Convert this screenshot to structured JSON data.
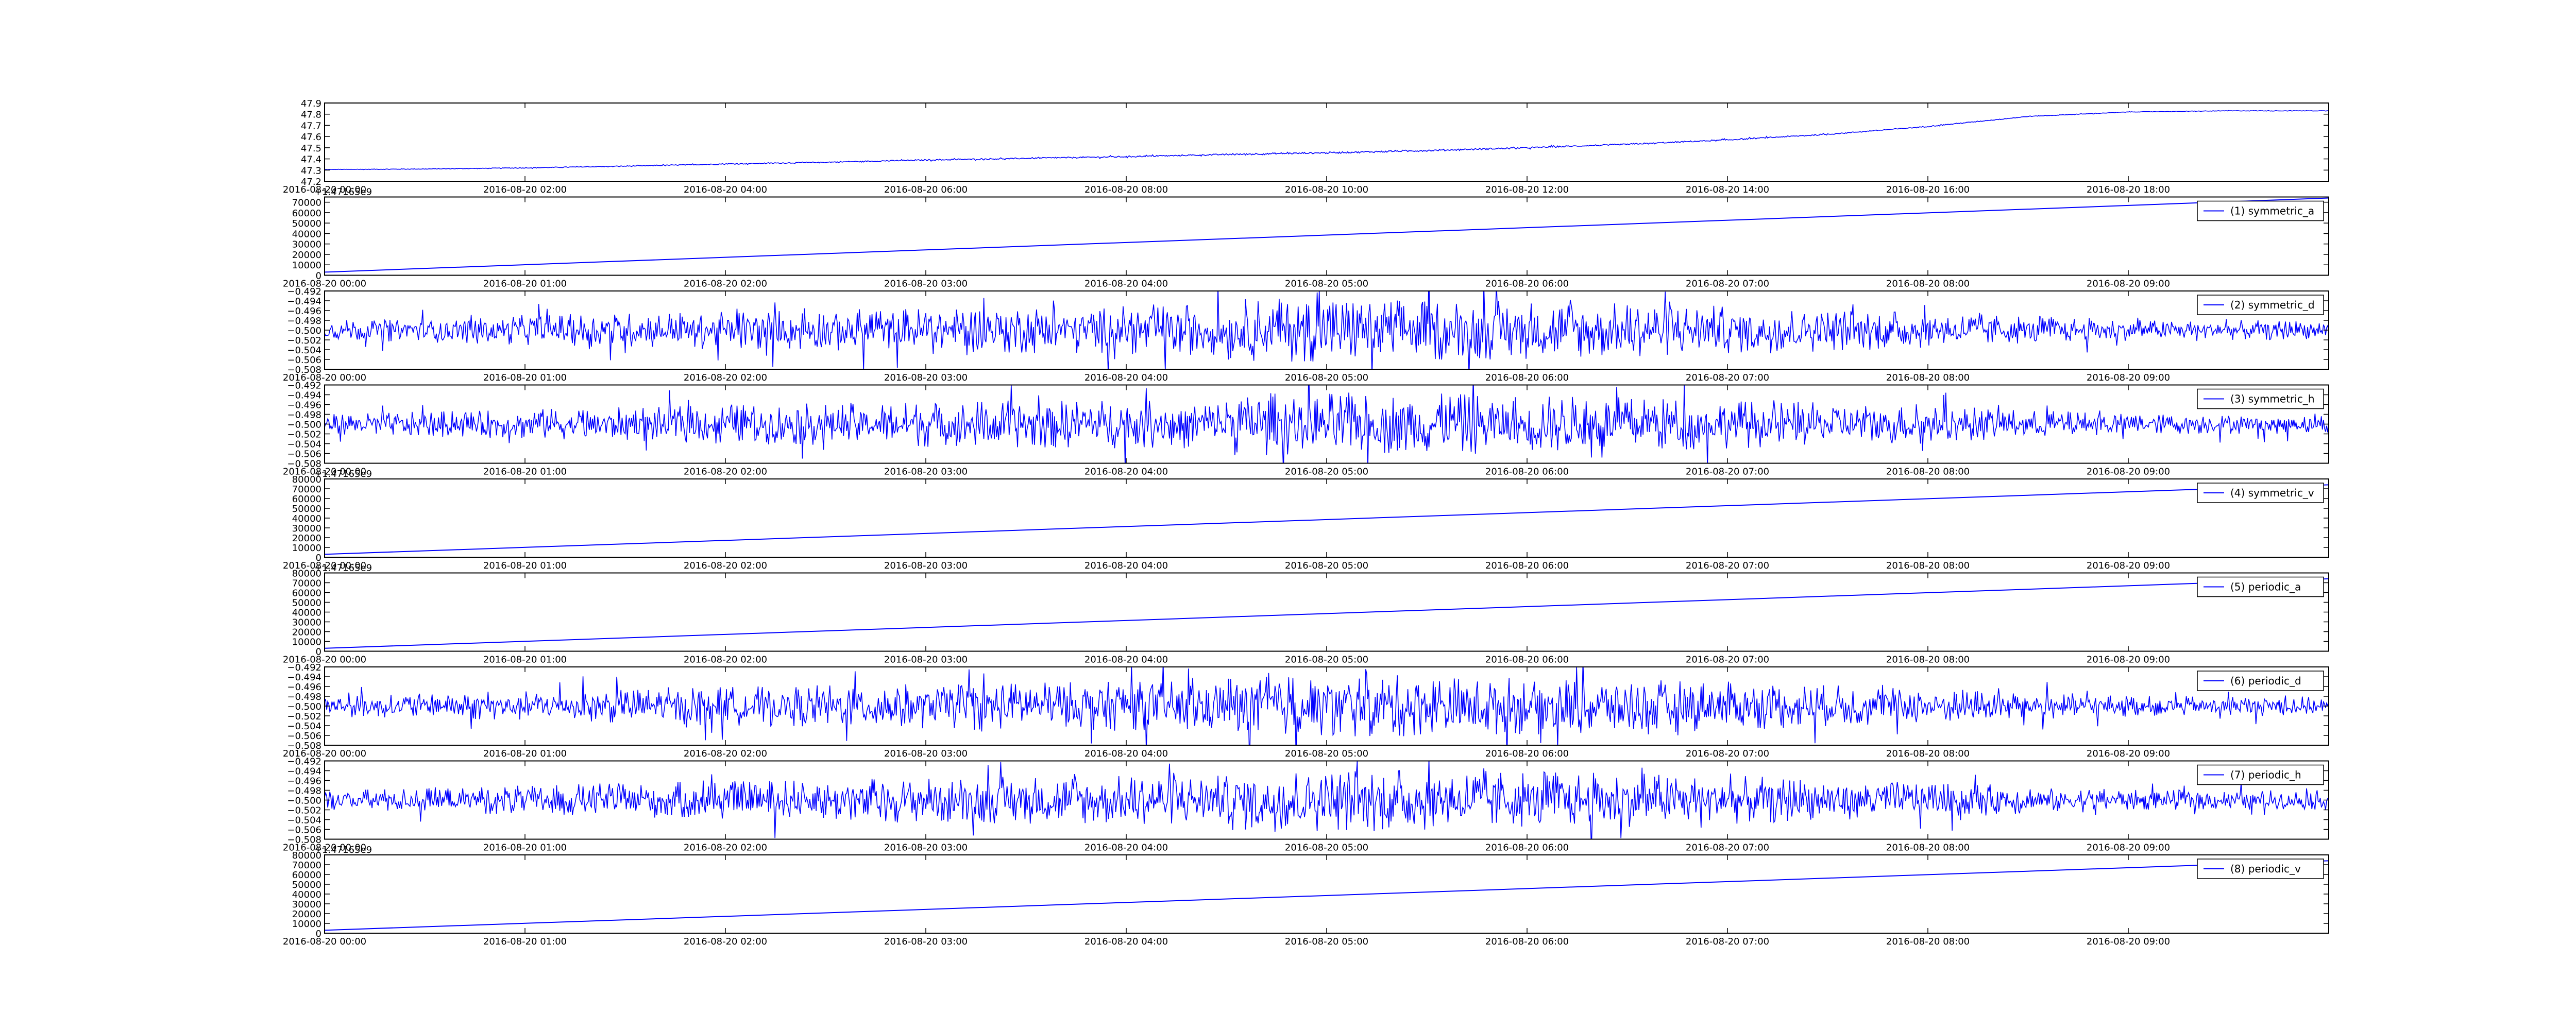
{
  "colors": {
    "line": "#0000ff",
    "axes": "#000000",
    "background": "#ffffff"
  },
  "chart_data": [
    {
      "type": "line",
      "legend": null,
      "offset_label": "",
      "x_ticks": [
        "2016-08-20 00:00",
        "2016-08-20 02:00",
        "2016-08-20 04:00",
        "2016-08-20 06:00",
        "2016-08-20 08:00",
        "2016-08-20 10:00",
        "2016-08-20 12:00",
        "2016-08-20 14:00",
        "2016-08-20 16:00",
        "2016-08-20 18:00"
      ],
      "x_range": [
        "2016-08-20 00:00",
        "2016-08-20 20:00"
      ],
      "y_ticks": [
        "47.2",
        "47.3",
        "47.4",
        "47.5",
        "47.6",
        "47.7",
        "47.8",
        "47.9"
      ],
      "ylim": [
        47.2,
        47.9
      ],
      "series": [
        {
          "trend": [
            [
              0,
              47.305
            ],
            [
              1,
              47.31
            ],
            [
              2,
              47.32
            ],
            [
              3,
              47.335
            ],
            [
              4,
              47.355
            ],
            [
              5,
              47.37
            ],
            [
              6,
              47.39
            ],
            [
              7,
              47.405
            ],
            [
              8,
              47.42
            ],
            [
              9,
              47.44
            ],
            [
              10,
              47.455
            ],
            [
              11,
              47.475
            ],
            [
              12,
              47.5
            ],
            [
              13,
              47.53
            ],
            [
              14,
              47.57
            ],
            [
              15,
              47.62
            ],
            [
              16,
              47.69
            ],
            [
              17,
              47.78
            ],
            [
              18,
              47.82
            ],
            [
              19,
              47.83
            ],
            [
              20,
              47.83
            ]
          ],
          "noise": 0.006
        }
      ]
    },
    {
      "type": "line",
      "legend": "(1) symmetric_a",
      "offset_label": "+1.47165e9",
      "x_ticks": [
        "2016-08-20 00:00",
        "2016-08-20 01:00",
        "2016-08-20 02:00",
        "2016-08-20 03:00",
        "2016-08-20 04:00",
        "2016-08-20 05:00",
        "2016-08-20 06:00",
        "2016-08-20 07:00",
        "2016-08-20 08:00",
        "2016-08-20 09:00"
      ],
      "x_range": [
        "2016-08-20 00:00",
        "2016-08-20 10:00"
      ],
      "y_ticks": [
        "0",
        "10000",
        "20000",
        "30000",
        "40000",
        "50000",
        "60000",
        "70000"
      ],
      "ylim": [
        0,
        75000
      ],
      "series": [
        {
          "trend": [
            [
              0,
              3000
            ],
            [
              10,
              74000
            ]
          ],
          "noise": 0
        }
      ]
    },
    {
      "type": "line",
      "legend": "(2) symmetric_d",
      "offset_label": "",
      "x_ticks": [
        "2016-08-20 00:00",
        "2016-08-20 01:00",
        "2016-08-20 02:00",
        "2016-08-20 03:00",
        "2016-08-20 04:00",
        "2016-08-20 05:00",
        "2016-08-20 06:00",
        "2016-08-20 07:00",
        "2016-08-20 08:00",
        "2016-08-20 09:00"
      ],
      "x_range": [
        "2016-08-20 00:00",
        "2016-08-20 10:00"
      ],
      "y_ticks": [
        "−0.508",
        "−0.506",
        "−0.504",
        "−0.502",
        "−0.500",
        "−0.498",
        "−0.496",
        "−0.494",
        "−0.492"
      ],
      "ylim": [
        -0.508,
        -0.492
      ],
      "series": [
        {
          "trend": [
            [
              0,
              -0.5
            ],
            [
              10,
              -0.5
            ]
          ],
          "noise": 0.0045
        }
      ]
    },
    {
      "type": "line",
      "legend": "(3) symmetric_h",
      "offset_label": "",
      "x_ticks": [
        "2016-08-20 00:00",
        "2016-08-20 01:00",
        "2016-08-20 02:00",
        "2016-08-20 03:00",
        "2016-08-20 04:00",
        "2016-08-20 05:00",
        "2016-08-20 06:00",
        "2016-08-20 07:00",
        "2016-08-20 08:00",
        "2016-08-20 09:00"
      ],
      "x_range": [
        "2016-08-20 00:00",
        "2016-08-20 10:00"
      ],
      "y_ticks": [
        "−0.508",
        "−0.506",
        "−0.504",
        "−0.502",
        "−0.500",
        "−0.498",
        "−0.496",
        "−0.494",
        "−0.492"
      ],
      "ylim": [
        -0.508,
        -0.492
      ],
      "series": [
        {
          "trend": [
            [
              0,
              -0.5
            ],
            [
              10,
              -0.5
            ]
          ],
          "noise": 0.0045
        }
      ]
    },
    {
      "type": "line",
      "legend": "(4) symmetric_v",
      "offset_label": "+1.47165e9",
      "x_ticks": [
        "2016-08-20 00:00",
        "2016-08-20 01:00",
        "2016-08-20 02:00",
        "2016-08-20 03:00",
        "2016-08-20 04:00",
        "2016-08-20 05:00",
        "2016-08-20 06:00",
        "2016-08-20 07:00",
        "2016-08-20 08:00",
        "2016-08-20 09:00"
      ],
      "x_range": [
        "2016-08-20 00:00",
        "2016-08-20 10:00"
      ],
      "y_ticks": [
        "0",
        "10000",
        "20000",
        "30000",
        "40000",
        "50000",
        "60000",
        "70000",
        "80000"
      ],
      "ylim": [
        0,
        80000
      ],
      "series": [
        {
          "trend": [
            [
              0,
              3000
            ],
            [
              10,
              74000
            ]
          ],
          "noise": 0
        }
      ]
    },
    {
      "type": "line",
      "legend": "(5) periodic_a",
      "offset_label": "+1.47165e9",
      "x_ticks": [
        "2016-08-20 00:00",
        "2016-08-20 01:00",
        "2016-08-20 02:00",
        "2016-08-20 03:00",
        "2016-08-20 04:00",
        "2016-08-20 05:00",
        "2016-08-20 06:00",
        "2016-08-20 07:00",
        "2016-08-20 08:00",
        "2016-08-20 09:00"
      ],
      "x_range": [
        "2016-08-20 00:00",
        "2016-08-20 10:00"
      ],
      "y_ticks": [
        "0",
        "10000",
        "20000",
        "30000",
        "40000",
        "50000",
        "60000",
        "70000",
        "80000"
      ],
      "ylim": [
        0,
        80000
      ],
      "series": [
        {
          "trend": [
            [
              0,
              3000
            ],
            [
              10,
              74000
            ]
          ],
          "noise": 0
        }
      ]
    },
    {
      "type": "line",
      "legend": "(6) periodic_d",
      "offset_label": "",
      "x_ticks": [
        "2016-08-20 00:00",
        "2016-08-20 01:00",
        "2016-08-20 02:00",
        "2016-08-20 03:00",
        "2016-08-20 04:00",
        "2016-08-20 05:00",
        "2016-08-20 06:00",
        "2016-08-20 07:00",
        "2016-08-20 08:00",
        "2016-08-20 09:00"
      ],
      "x_range": [
        "2016-08-20 00:00",
        "2016-08-20 10:00"
      ],
      "y_ticks": [
        "−0.508",
        "−0.506",
        "−0.504",
        "−0.502",
        "−0.500",
        "−0.498",
        "−0.496",
        "−0.494",
        "−0.492"
      ],
      "ylim": [
        -0.508,
        -0.492
      ],
      "series": [
        {
          "trend": [
            [
              0,
              -0.5
            ],
            [
              10,
              -0.5
            ]
          ],
          "noise": 0.0045
        }
      ]
    },
    {
      "type": "line",
      "legend": "(7) periodic_h",
      "offset_label": "",
      "x_ticks": [
        "2016-08-20 00:00",
        "2016-08-20 01:00",
        "2016-08-20 02:00",
        "2016-08-20 03:00",
        "2016-08-20 04:00",
        "2016-08-20 05:00",
        "2016-08-20 06:00",
        "2016-08-20 07:00",
        "2016-08-20 08:00",
        "2016-08-20 09:00"
      ],
      "x_range": [
        "2016-08-20 00:00",
        "2016-08-20 10:00"
      ],
      "y_ticks": [
        "−0.508",
        "−0.506",
        "−0.504",
        "−0.502",
        "−0.500",
        "−0.498",
        "−0.496",
        "−0.494",
        "−0.492"
      ],
      "ylim": [
        -0.508,
        -0.492
      ],
      "series": [
        {
          "trend": [
            [
              0,
              -0.5
            ],
            [
              10,
              -0.5
            ]
          ],
          "noise": 0.0045
        }
      ]
    },
    {
      "type": "line",
      "legend": "(8) periodic_v",
      "offset_label": "+1.47165e9",
      "x_ticks": [
        "2016-08-20 00:00",
        "2016-08-20 01:00",
        "2016-08-20 02:00",
        "2016-08-20 03:00",
        "2016-08-20 04:00",
        "2016-08-20 05:00",
        "2016-08-20 06:00",
        "2016-08-20 07:00",
        "2016-08-20 08:00",
        "2016-08-20 09:00"
      ],
      "x_range": [
        "2016-08-20 00:00",
        "2016-08-20 10:00"
      ],
      "y_ticks": [
        "0",
        "10000",
        "20000",
        "30000",
        "40000",
        "50000",
        "60000",
        "70000",
        "80000"
      ],
      "ylim": [
        0,
        80000
      ],
      "series": [
        {
          "trend": [
            [
              0,
              3000
            ],
            [
              10,
              74000
            ]
          ],
          "noise": 0
        }
      ]
    }
  ]
}
